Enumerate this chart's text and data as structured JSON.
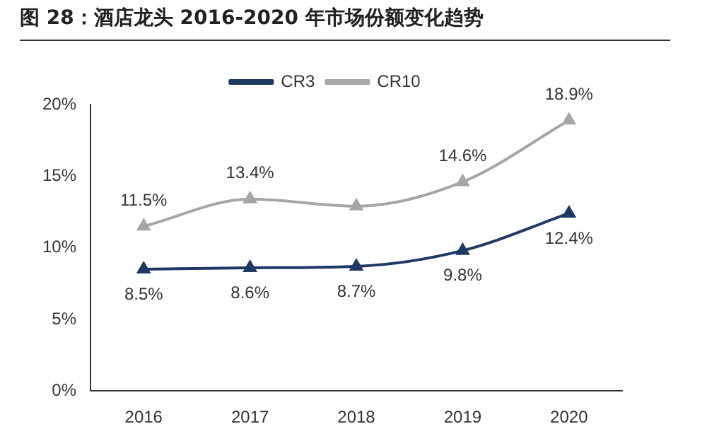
{
  "chart_data": {
    "type": "line",
    "title": "图 28：酒店龙头 2016-2020 年市场份额变化趋势",
    "categories": [
      "2016",
      "2017",
      "2018",
      "2019",
      "2020"
    ],
    "series": [
      {
        "name": "CR3",
        "color": "#1f3864",
        "values": [
          8.5,
          8.6,
          8.7,
          9.8,
          12.4
        ],
        "value_labels": [
          "8.5%",
          "8.6%",
          "8.7%",
          "9.8%",
          "12.4%"
        ]
      },
      {
        "name": "CR10",
        "color": "#a6a6a6",
        "values": [
          11.5,
          13.4,
          12.9,
          14.6,
          18.9
        ],
        "value_labels": [
          "11.5%",
          "13.4%",
          null,
          "14.6%",
          "18.9%"
        ]
      }
    ],
    "ylim": [
      0,
      20
    ],
    "yticks": [
      {
        "value": 0,
        "label": "0%"
      },
      {
        "value": 5,
        "label": "5%"
      },
      {
        "value": 10,
        "label": "10%"
      },
      {
        "value": 15,
        "label": "15%"
      },
      {
        "value": 20,
        "label": "20%"
      }
    ],
    "grid": false,
    "legend": "top",
    "marker": "triangle",
    "line_style": "solid"
  }
}
